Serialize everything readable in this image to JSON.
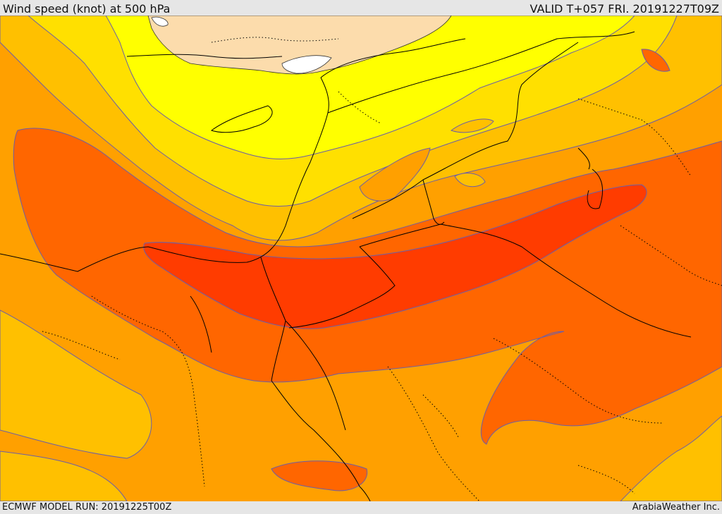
{
  "header": {
    "title": "Wind speed (knot) at 500 hPa",
    "valid": "VALID T+057 FRI. 20191227T09Z"
  },
  "footer": {
    "model_run": "ECMWF MODEL RUN: 20191225T00Z",
    "credit": "ArabiaWeather Inc."
  },
  "legend_colors": {
    "land_outside_domain": "#fcdcac",
    "sea_ice_white": "#ffffff",
    "band_1": "#ffff00",
    "band_2": "#ffe000",
    "band_3": "#ffc000",
    "band_4": "#ffa000",
    "band_5": "#ff6600",
    "band_6": "#ff3c00",
    "contour_line": "#6b5fa8",
    "border_line": "#000000"
  }
}
